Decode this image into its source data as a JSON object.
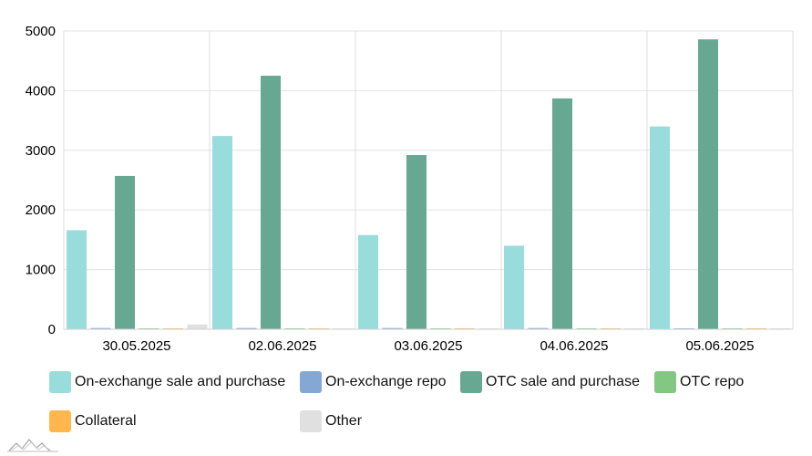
{
  "chart_data": {
    "type": "bar",
    "categories": [
      "30.05.2025",
      "02.06.2025",
      "03.06.2025",
      "04.06.2025",
      "05.06.2025"
    ],
    "series": [
      {
        "name": "On-exchange sale and purchase",
        "color": "#99dcdc",
        "values": [
          1660,
          3240,
          1580,
          1400,
          3400
        ]
      },
      {
        "name": "On-exchange repo",
        "color": "#85a7d4",
        "values": [
          20,
          20,
          20,
          20,
          10
        ]
      },
      {
        "name": "OTC sale and purchase",
        "color": "#67a893",
        "values": [
          2570,
          4250,
          2920,
          3870,
          4860
        ]
      },
      {
        "name": "OTC repo",
        "color": "#82c782",
        "values": [
          5,
          5,
          5,
          5,
          5
        ]
      },
      {
        "name": "Collateral",
        "color": "#ffb74d",
        "values": [
          5,
          5,
          5,
          5,
          5
        ]
      },
      {
        "name": "Other",
        "color": "#e0e0e0",
        "values": [
          80,
          5,
          5,
          5,
          5
        ]
      }
    ],
    "ylim": [
      0,
      5000
    ],
    "yticks": [
      "0",
      "1000",
      "2000",
      "3000",
      "4000",
      "5000"
    ],
    "grid": true,
    "legend_position": "bottom"
  }
}
